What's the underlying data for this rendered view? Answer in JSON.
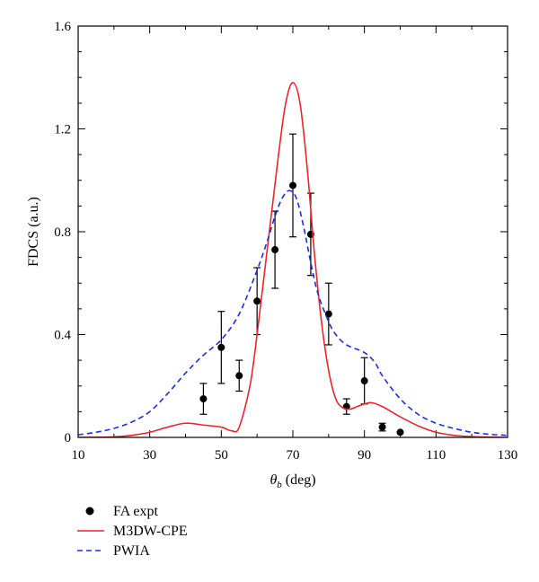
{
  "chart_data": {
    "type": "line",
    "xlabel_symbol": "θ",
    "xlabel_sub": "b",
    "xlabel_unit": "(deg)",
    "ylabel": "FDCS (a.u.)",
    "xlim": [
      10,
      130
    ],
    "ylim": [
      0,
      1.6
    ],
    "xticks": [
      "10",
      "30",
      "50",
      "70",
      "90",
      "110",
      "130"
    ],
    "yticks": [
      "0",
      "0.4",
      "0.8",
      "1.2",
      "1.6"
    ],
    "legend_position": "bottom-left",
    "series": [
      {
        "name": "FA expt",
        "style": "points-with-error-bars",
        "color": "#000000",
        "x": [
          45,
          50,
          55,
          60,
          65,
          70,
          75,
          80,
          85,
          90,
          95,
          100
        ],
        "y": [
          0.15,
          0.35,
          0.24,
          0.53,
          0.73,
          0.98,
          0.79,
          0.48,
          0.12,
          0.22,
          0.04,
          0.02
        ],
        "err": [
          0.06,
          0.14,
          0.06,
          0.13,
          0.15,
          0.2,
          0.16,
          0.12,
          0.03,
          0.09,
          0.015,
          0.0
        ]
      },
      {
        "name": "M3DW-CPE",
        "style": "solid",
        "color": "#e8262b",
        "x": [
          10,
          20,
          25,
          30,
          35,
          40,
          45,
          50,
          53,
          55,
          58,
          60,
          63,
          66,
          68,
          70,
          72,
          74,
          76,
          78,
          80,
          82,
          84,
          86,
          88,
          90,
          92,
          95,
          100,
          105,
          110,
          115,
          120,
          125,
          130
        ],
        "y": [
          0.0,
          0.002,
          0.008,
          0.02,
          0.04,
          0.055,
          0.048,
          0.04,
          0.025,
          0.04,
          0.2,
          0.4,
          0.75,
          1.1,
          1.3,
          1.38,
          1.3,
          1.05,
          0.72,
          0.45,
          0.26,
          0.15,
          0.115,
          0.11,
          0.12,
          0.13,
          0.135,
          0.12,
          0.08,
          0.045,
          0.02,
          0.008,
          0.003,
          0.001,
          0.0
        ]
      },
      {
        "name": "PWIA",
        "style": "dashed",
        "color": "#1f2ddb",
        "x": [
          10,
          15,
          20,
          25,
          30,
          35,
          40,
          45,
          50,
          55,
          60,
          63,
          65,
          67,
          69,
          71,
          73,
          75,
          77,
          80,
          82,
          85,
          90,
          93,
          95,
          100,
          105,
          110,
          115,
          120,
          125,
          130
        ],
        "y": [
          0.01,
          0.02,
          0.035,
          0.06,
          0.1,
          0.17,
          0.25,
          0.32,
          0.38,
          0.48,
          0.65,
          0.77,
          0.86,
          0.93,
          0.96,
          0.93,
          0.82,
          0.68,
          0.56,
          0.45,
          0.4,
          0.36,
          0.33,
          0.29,
          0.24,
          0.15,
          0.09,
          0.055,
          0.035,
          0.02,
          0.012,
          0.008
        ]
      }
    ]
  }
}
